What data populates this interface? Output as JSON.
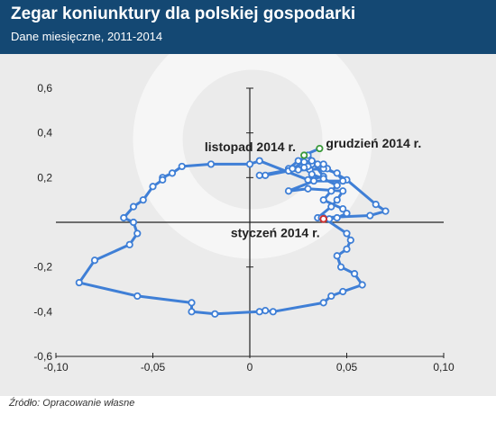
{
  "header": {
    "title": "Zegar koniunktury dla polskiej gospodarki",
    "subtitle": "Dane miesięczne, 2011-2014"
  },
  "footer": {
    "source": "Źródło: Opracowanie własne"
  },
  "colors": {
    "header_bg": "#144873",
    "line": "#3f7fd6",
    "start_marker": "#cc3333",
    "end_marker": "#3a9a3a",
    "plot_bg": "#ebebeb"
  },
  "chart_data": {
    "type": "scatter",
    "title": "Zegar koniunktury dla polskiej gospodarki",
    "subtitle": "Dane miesięczne, 2011-2014",
    "xlim": [
      -0.1,
      0.1
    ],
    "ylim": [
      -0.6,
      0.6
    ],
    "x_ticks": [
      -0.1,
      -0.05,
      0,
      0.05,
      0.1
    ],
    "y_ticks": [
      -0.6,
      -0.4,
      -0.2,
      0,
      0.2,
      0.4,
      0.6
    ],
    "x_tick_labels": [
      "-0,10",
      "-0,05",
      "0",
      "0,05",
      "0,10"
    ],
    "y_tick_labels": [
      "-0,6",
      "-0,4",
      "-0,2",
      "0",
      "0,2",
      "0,4",
      "0,6"
    ],
    "grid": false,
    "series": [
      {
        "points": [
          [
            0.032,
            0.26
          ],
          [
            0.031,
            0.235
          ],
          [
            0.025,
            0.235
          ],
          [
            0.02,
            0.24
          ],
          [
            0.025,
            0.275
          ],
          [
            0.03,
            0.3
          ],
          [
            0.035,
            0.26
          ],
          [
            0.04,
            0.24
          ],
          [
            0.05,
            0.19
          ],
          [
            0.065,
            0.08
          ],
          [
            0.07,
            0.05
          ],
          [
            0.062,
            0.03
          ],
          [
            0.035,
            0.02
          ],
          [
            0.042,
            0.07
          ],
          [
            0.045,
            0.1
          ],
          [
            0.048,
            0.14
          ],
          [
            0.03,
            0.15
          ],
          [
            0.02,
            0.14
          ],
          [
            0.033,
            0.185
          ],
          [
            0.048,
            0.185
          ],
          [
            0.045,
            0.22
          ],
          [
            0.038,
            0.24
          ],
          [
            0.02,
            0.23
          ],
          [
            0.008,
            0.21
          ],
          [
            0.005,
            0.21
          ],
          [
            0.03,
            0.25
          ],
          [
            0.038,
            0.26
          ],
          [
            0.022,
            0.24
          ],
          [
            0.028,
            0.27
          ],
          [
            0.032,
            0.275
          ],
          [
            0.038,
            0.205
          ],
          [
            0.03,
            0.19
          ],
          [
            0.005,
            0.275
          ],
          [
            0.0,
            0.26
          ],
          [
            -0.02,
            0.26
          ],
          [
            -0.035,
            0.25
          ],
          [
            -0.04,
            0.22
          ],
          [
            -0.045,
            0.2
          ],
          [
            -0.045,
            0.19
          ],
          [
            -0.05,
            0.16
          ],
          [
            -0.055,
            0.1
          ],
          [
            -0.06,
            0.07
          ],
          [
            -0.065,
            0.02
          ],
          [
            -0.06,
            0.0
          ],
          [
            -0.058,
            -0.05
          ],
          [
            -0.062,
            -0.1
          ],
          [
            -0.08,
            -0.17
          ],
          [
            -0.088,
            -0.27
          ],
          [
            -0.058,
            -0.33
          ],
          [
            -0.03,
            -0.36
          ],
          [
            -0.03,
            -0.4
          ],
          [
            -0.018,
            -0.41
          ],
          [
            0.005,
            -0.4
          ],
          [
            0.008,
            -0.395
          ],
          [
            0.012,
            -0.4
          ],
          [
            0.038,
            -0.36
          ],
          [
            0.042,
            -0.33
          ],
          [
            0.048,
            -0.31
          ],
          [
            0.058,
            -0.28
          ],
          [
            0.054,
            -0.23
          ],
          [
            0.047,
            -0.2
          ],
          [
            0.045,
            -0.15
          ],
          [
            0.05,
            -0.12
          ],
          [
            0.052,
            -0.08
          ],
          [
            0.05,
            -0.05
          ],
          [
            0.038,
            0.02
          ],
          [
            0.037,
            0.02
          ],
          [
            0.038,
            0.015
          ],
          [
            0.041,
            0.015
          ],
          [
            0.045,
            0.02
          ],
          [
            0.05,
            0.04
          ],
          [
            0.048,
            0.06
          ],
          [
            0.038,
            0.1
          ],
          [
            0.042,
            0.14
          ],
          [
            0.045,
            0.165
          ],
          [
            0.038,
            0.195
          ],
          [
            0.032,
            0.215
          ],
          [
            0.028,
            0.245
          ],
          [
            0.028,
            0.3
          ],
          [
            0.036,
            0.33
          ]
        ]
      }
    ],
    "annotations": [
      {
        "text": "styczeń 2014 r.",
        "x": 0.038,
        "y": 0.015
      },
      {
        "text": "listopad 2014 r.",
        "x": 0.027,
        "y": 0.303
      },
      {
        "text": "grudzień 2014 r.",
        "x": 0.036,
        "y": 0.334
      }
    ]
  }
}
